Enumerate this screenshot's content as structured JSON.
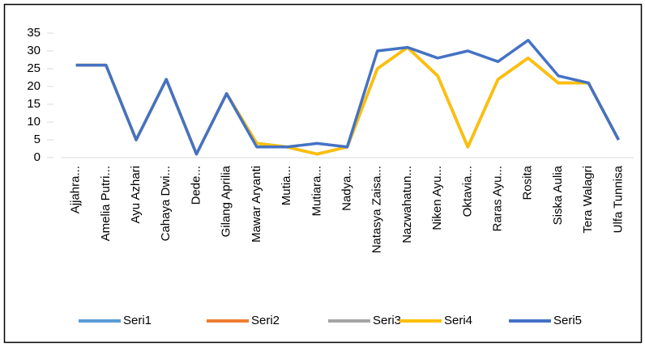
{
  "chart_data": {
    "type": "line",
    "categories": [
      "Ajjahra...",
      "Amelia Putri...",
      "Ayu Azhari",
      "Cahaya Dwi...",
      "Dede...",
      "Gilang Aprilia",
      "Mawar Aryanti",
      "Mutia...",
      "Mutiara...",
      "Nadya...",
      "Natasya Zaisa...",
      "Nazwahatun...",
      "Niken Ayu...",
      "Oktavia...",
      "Raras Ayu...",
      "Rosita",
      "Siska Aulia",
      "Tera Walagri",
      "Ulfa Tunnisa"
    ],
    "series": [
      {
        "name": "Seri1",
        "color": "#5b9bd5",
        "values": [
          26,
          26,
          5,
          22,
          1,
          18,
          4,
          3,
          1,
          3,
          25,
          31,
          23,
          3,
          22,
          28,
          21,
          21,
          5
        ]
      },
      {
        "name": "Seri2",
        "color": "#ed7d31",
        "values": [
          26,
          26,
          5,
          22,
          1,
          18,
          4,
          3,
          1,
          3,
          25,
          31,
          23,
          3,
          22,
          28,
          21,
          21,
          5
        ]
      },
      {
        "name": "Seri3",
        "color": "#a5a5a5",
        "values": [
          26,
          26,
          5,
          22,
          1,
          18,
          4,
          3,
          1,
          3,
          25,
          31,
          23,
          3,
          22,
          28,
          21,
          21,
          5
        ]
      },
      {
        "name": "Seri4",
        "color": "#ffc000",
        "values": [
          26,
          26,
          5,
          22,
          1,
          18,
          4,
          3,
          1,
          3,
          25,
          31,
          23,
          3,
          22,
          28,
          21,
          21,
          5
        ]
      },
      {
        "name": "Seri5",
        "color": "#4472c4",
        "values": [
          26,
          26,
          5,
          22,
          1,
          18,
          3,
          3,
          4,
          3,
          30,
          31,
          28,
          30,
          27,
          33,
          23,
          21,
          5
        ]
      }
    ],
    "ylim": [
      0,
      35
    ],
    "yticks": [
      0,
      5,
      10,
      15,
      20,
      25,
      30,
      35
    ],
    "grid": false,
    "legend": "bottom"
  }
}
